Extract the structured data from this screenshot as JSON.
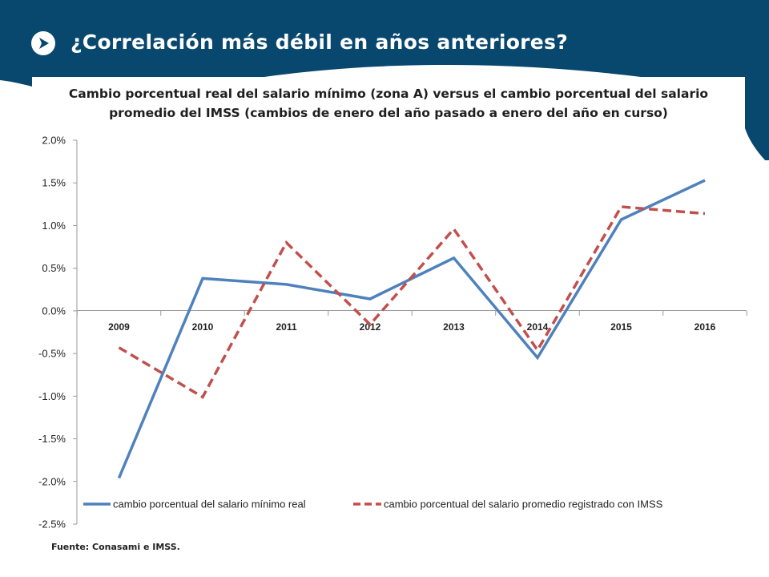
{
  "slide": {
    "title": "¿Correlación más débil en años anteriores?",
    "source_note": "Fuente: Conasami e IMSS.",
    "colors": {
      "header_bg": "#08476e",
      "badge": "#ffffff"
    },
    "badge_icon": "arrow-right-icon"
  },
  "chart_data": {
    "type": "line",
    "title_line1": "Cambio porcentual  real del salario  mínimo  (zona A) versus  el cambio porcentual  del salario",
    "title_line2": "promedio  del IMSS (cambios de enero del año pasado  a enero del año en curso)",
    "categories": [
      "2009",
      "2010",
      "2011",
      "2012",
      "2013",
      "2014",
      "2015",
      "2016"
    ],
    "ylim": [
      -2.5,
      2.0
    ],
    "yticks": [
      "2.0%",
      "1.5%",
      "1.0%",
      "0.5%",
      "0.0%",
      "-0.5%",
      "-1.0%",
      "-1.5%",
      "-2.0%",
      "-2.5%"
    ],
    "ytick_values": [
      2.0,
      1.5,
      1.0,
      0.5,
      0.0,
      -0.5,
      -1.0,
      -1.5,
      -2.0,
      -2.5
    ],
    "grid": false,
    "legend_position": "bottom",
    "series": [
      {
        "name": "cambio porcentual del salario mínimo real",
        "values": [
          -1.96,
          0.38,
          0.31,
          0.14,
          0.62,
          -0.55,
          1.07,
          1.53
        ],
        "color": "#4f81bd",
        "style": "solid"
      },
      {
        "name": "cambio porcentual del salario promedio registrado con IMSS",
        "values": [
          -0.43,
          -1.01,
          0.8,
          -0.16,
          0.96,
          -0.46,
          1.22,
          1.14
        ],
        "color": "#c0504d",
        "style": "dashed"
      }
    ]
  }
}
